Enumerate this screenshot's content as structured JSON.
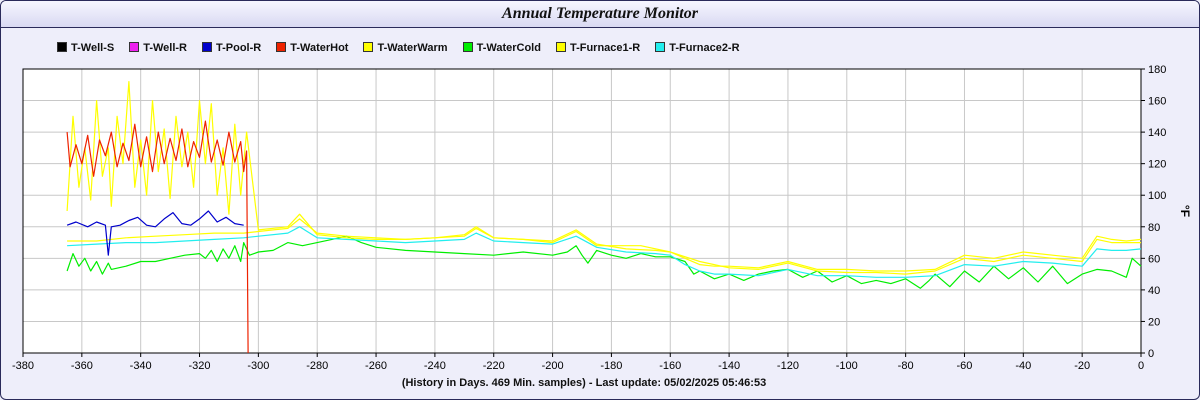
{
  "window": {
    "title": "Annual Temperature Monitor"
  },
  "footnote": "(History in Days. 469 Min. samples) - Last update: 05/02/2025 05:46:53",
  "chart_data": {
    "type": "line",
    "title": "Annual Temperature Monitor",
    "xlabel": "",
    "ylabel": "°F",
    "xlim": [
      -380,
      0
    ],
    "ylim": [
      0,
      180
    ],
    "xticks": [
      -380,
      -360,
      -340,
      -320,
      -300,
      -280,
      -260,
      -240,
      -220,
      -200,
      -180,
      -160,
      -140,
      -120,
      -100,
      -80,
      -60,
      -40,
      -20,
      0
    ],
    "yticks": [
      0,
      20,
      40,
      60,
      80,
      100,
      120,
      140,
      160,
      180
    ],
    "grid": true,
    "legend_position": "top-left",
    "series": [
      {
        "name": "T-Well-S",
        "color": "#000000",
        "points": []
      },
      {
        "name": "T-Well-R",
        "color": "#ee22ee",
        "points": []
      },
      {
        "name": "T-Pool-R",
        "color": "#0000cc",
        "points": [
          [
            -365,
            81
          ],
          [
            -362,
            83
          ],
          [
            -358,
            80
          ],
          [
            -355,
            83
          ],
          [
            -352,
            81
          ],
          [
            -351,
            62
          ],
          [
            -350,
            80
          ],
          [
            -347,
            81
          ],
          [
            -344,
            84
          ],
          [
            -341,
            86
          ],
          [
            -338,
            81
          ],
          [
            -335,
            80
          ],
          [
            -332,
            85
          ],
          [
            -329,
            89
          ],
          [
            -326,
            82
          ],
          [
            -323,
            81
          ],
          [
            -320,
            85
          ],
          [
            -317,
            90
          ],
          [
            -314,
            83
          ],
          [
            -311,
            86
          ],
          [
            -308,
            82
          ],
          [
            -305,
            81
          ]
        ]
      },
      {
        "name": "T-WaterHot",
        "color": "#ee2200",
        "points": [
          [
            -365,
            140
          ],
          [
            -364,
            118
          ],
          [
            -362,
            132
          ],
          [
            -360,
            120
          ],
          [
            -358,
            138
          ],
          [
            -356,
            112
          ],
          [
            -354,
            135
          ],
          [
            -352,
            125
          ],
          [
            -350,
            140
          ],
          [
            -348,
            118
          ],
          [
            -346,
            133
          ],
          [
            -344,
            122
          ],
          [
            -342,
            145
          ],
          [
            -340,
            118
          ],
          [
            -338,
            137
          ],
          [
            -336,
            115
          ],
          [
            -334,
            140
          ],
          [
            -332,
            120
          ],
          [
            -330,
            136
          ],
          [
            -328,
            122
          ],
          [
            -326,
            142
          ],
          [
            -324,
            118
          ],
          [
            -322,
            134
          ],
          [
            -320,
            124
          ],
          [
            -318,
            147
          ],
          [
            -316,
            121
          ],
          [
            -314,
            135
          ],
          [
            -312,
            119
          ],
          [
            -310,
            140
          ],
          [
            -308,
            121
          ],
          [
            -306,
            134
          ],
          [
            -305,
            115
          ],
          [
            -304,
            128
          ],
          [
            -303.5,
            0
          ]
        ]
      },
      {
        "name": "T-WaterWarm",
        "color": "#ffff00",
        "points": [
          [
            -365,
            90
          ],
          [
            -363,
            150
          ],
          [
            -361,
            105
          ],
          [
            -359,
            130
          ],
          [
            -357,
            97
          ],
          [
            -355,
            160
          ],
          [
            -353,
            112
          ],
          [
            -351,
            130
          ],
          [
            -350,
            93
          ],
          [
            -348,
            150
          ],
          [
            -346,
            120
          ],
          [
            -344,
            172
          ],
          [
            -342,
            105
          ],
          [
            -340,
            135
          ],
          [
            -338,
            100
          ],
          [
            -336,
            160
          ],
          [
            -334,
            115
          ],
          [
            -332,
            142
          ],
          [
            -330,
            98
          ],
          [
            -328,
            150
          ],
          [
            -326,
            118
          ],
          [
            -324,
            140
          ],
          [
            -322,
            105
          ],
          [
            -320,
            160
          ],
          [
            -318,
            120
          ],
          [
            -316,
            158
          ],
          [
            -314,
            100
          ],
          [
            -312,
            130
          ],
          [
            -310,
            88
          ],
          [
            -308,
            145
          ],
          [
            -306,
            100
          ],
          [
            -304,
            140
          ],
          [
            -300,
            78
          ],
          [
            -290,
            80
          ],
          [
            -286,
            88
          ],
          [
            -280,
            75
          ],
          [
            -270,
            73
          ],
          [
            -260,
            72
          ],
          [
            -250,
            72
          ],
          [
            -240,
            73
          ],
          [
            -230,
            75
          ],
          [
            -226,
            80
          ],
          [
            -220,
            73
          ],
          [
            -210,
            72
          ],
          [
            -200,
            70
          ],
          [
            -192,
            77
          ],
          [
            -185,
            68
          ],
          [
            -170,
            68
          ],
          [
            -160,
            64
          ],
          [
            -150,
            58
          ],
          [
            -140,
            54
          ],
          [
            -130,
            53
          ],
          [
            -120,
            57
          ],
          [
            -110,
            52
          ],
          [
            -100,
            51
          ],
          [
            -90,
            51
          ],
          [
            -80,
            50
          ],
          [
            -70,
            52
          ],
          [
            -60,
            60
          ],
          [
            -50,
            58
          ],
          [
            -40,
            62
          ],
          [
            -30,
            60
          ],
          [
            -20,
            58
          ],
          [
            -15,
            72
          ],
          [
            -10,
            70
          ],
          [
            -5,
            70
          ],
          [
            0,
            70
          ]
        ]
      },
      {
        "name": "T-WaterCold",
        "color": "#00ee00",
        "points": [
          [
            -365,
            52
          ],
          [
            -363,
            63
          ],
          [
            -361,
            55
          ],
          [
            -359,
            60
          ],
          [
            -357,
            52
          ],
          [
            -355,
            58
          ],
          [
            -353,
            50
          ],
          [
            -351,
            57
          ],
          [
            -350,
            53
          ],
          [
            -345,
            55
          ],
          [
            -340,
            58
          ],
          [
            -335,
            58
          ],
          [
            -330,
            60
          ],
          [
            -325,
            62
          ],
          [
            -320,
            63
          ],
          [
            -318,
            60
          ],
          [
            -316,
            65
          ],
          [
            -314,
            58
          ],
          [
            -312,
            66
          ],
          [
            -310,
            60
          ],
          [
            -308,
            68
          ],
          [
            -306,
            58
          ],
          [
            -305,
            70
          ],
          [
            -303,
            62
          ],
          [
            -300,
            64
          ],
          [
            -295,
            65
          ],
          [
            -290,
            70
          ],
          [
            -285,
            68
          ],
          [
            -280,
            70
          ],
          [
            -275,
            72
          ],
          [
            -270,
            74
          ],
          [
            -265,
            70
          ],
          [
            -260,
            67
          ],
          [
            -250,
            65
          ],
          [
            -240,
            64
          ],
          [
            -230,
            63
          ],
          [
            -220,
            62
          ],
          [
            -210,
            64
          ],
          [
            -200,
            62
          ],
          [
            -195,
            64
          ],
          [
            -192,
            68
          ],
          [
            -190,
            62
          ],
          [
            -188,
            57
          ],
          [
            -185,
            65
          ],
          [
            -180,
            62
          ],
          [
            -175,
            60
          ],
          [
            -170,
            63
          ],
          [
            -165,
            61
          ],
          [
            -160,
            61
          ],
          [
            -155,
            58
          ],
          [
            -152,
            50
          ],
          [
            -150,
            52
          ],
          [
            -145,
            47
          ],
          [
            -140,
            50
          ],
          [
            -135,
            46
          ],
          [
            -130,
            50
          ],
          [
            -125,
            52
          ],
          [
            -120,
            53
          ],
          [
            -115,
            48
          ],
          [
            -110,
            52
          ],
          [
            -105,
            45
          ],
          [
            -100,
            49
          ],
          [
            -95,
            44
          ],
          [
            -90,
            46
          ],
          [
            -85,
            44
          ],
          [
            -80,
            47
          ],
          [
            -75,
            41
          ],
          [
            -72,
            46
          ],
          [
            -70,
            50
          ],
          [
            -65,
            42
          ],
          [
            -60,
            52
          ],
          [
            -55,
            45
          ],
          [
            -50,
            55
          ],
          [
            -45,
            47
          ],
          [
            -40,
            54
          ],
          [
            -35,
            45
          ],
          [
            -30,
            55
          ],
          [
            -25,
            44
          ],
          [
            -20,
            50
          ],
          [
            -15,
            53
          ],
          [
            -10,
            52
          ],
          [
            -5,
            48
          ],
          [
            -3,
            60
          ],
          [
            0,
            55
          ]
        ]
      },
      {
        "name": "T-Furnace1-R",
        "color": "#ffff00",
        "points": [
          [
            -365,
            71
          ],
          [
            -355,
            71
          ],
          [
            -345,
            73
          ],
          [
            -335,
            74
          ],
          [
            -325,
            75
          ],
          [
            -315,
            76
          ],
          [
            -305,
            76
          ],
          [
            -300,
            77
          ],
          [
            -295,
            78
          ],
          [
            -290,
            79
          ],
          [
            -286,
            85
          ],
          [
            -280,
            76
          ],
          [
            -270,
            74
          ],
          [
            -260,
            73
          ],
          [
            -250,
            72
          ],
          [
            -240,
            73
          ],
          [
            -230,
            74
          ],
          [
            -226,
            79
          ],
          [
            -220,
            73
          ],
          [
            -210,
            72
          ],
          [
            -200,
            71
          ],
          [
            -192,
            78
          ],
          [
            -185,
            69
          ],
          [
            -175,
            66
          ],
          [
            -165,
            65
          ],
          [
            -160,
            64
          ],
          [
            -155,
            60
          ],
          [
            -150,
            56
          ],
          [
            -145,
            55
          ],
          [
            -140,
            55
          ],
          [
            -130,
            54
          ],
          [
            -120,
            58
          ],
          [
            -110,
            53
          ],
          [
            -100,
            53
          ],
          [
            -90,
            52
          ],
          [
            -80,
            52
          ],
          [
            -70,
            53
          ],
          [
            -60,
            62
          ],
          [
            -50,
            60
          ],
          [
            -40,
            64
          ],
          [
            -30,
            62
          ],
          [
            -20,
            60
          ],
          [
            -15,
            74
          ],
          [
            -10,
            72
          ],
          [
            -5,
            71
          ],
          [
            0,
            72
          ]
        ]
      },
      {
        "name": "T-Furnace2-R",
        "color": "#22eeee",
        "points": [
          [
            -365,
            68
          ],
          [
            -355,
            69
          ],
          [
            -345,
            70
          ],
          [
            -335,
            70
          ],
          [
            -325,
            71
          ],
          [
            -315,
            72
          ],
          [
            -305,
            73
          ],
          [
            -300,
            74
          ],
          [
            -290,
            76
          ],
          [
            -286,
            80
          ],
          [
            -280,
            73
          ],
          [
            -270,
            72
          ],
          [
            -260,
            71
          ],
          [
            -250,
            70
          ],
          [
            -240,
            71
          ],
          [
            -230,
            72
          ],
          [
            -226,
            76
          ],
          [
            -220,
            71
          ],
          [
            -210,
            70
          ],
          [
            -200,
            69
          ],
          [
            -192,
            74
          ],
          [
            -185,
            67
          ],
          [
            -175,
            64
          ],
          [
            -165,
            63
          ],
          [
            -160,
            62
          ],
          [
            -155,
            56
          ],
          [
            -150,
            52
          ],
          [
            -145,
            50
          ],
          [
            -140,
            50
          ],
          [
            -130,
            49
          ],
          [
            -120,
            53
          ],
          [
            -110,
            49
          ],
          [
            -100,
            49
          ],
          [
            -90,
            48
          ],
          [
            -80,
            48
          ],
          [
            -70,
            49
          ],
          [
            -60,
            56
          ],
          [
            -50,
            55
          ],
          [
            -40,
            58
          ],
          [
            -30,
            57
          ],
          [
            -20,
            55
          ],
          [
            -15,
            66
          ],
          [
            -10,
            65
          ],
          [
            -5,
            65
          ],
          [
            0,
            66
          ]
        ]
      }
    ]
  }
}
